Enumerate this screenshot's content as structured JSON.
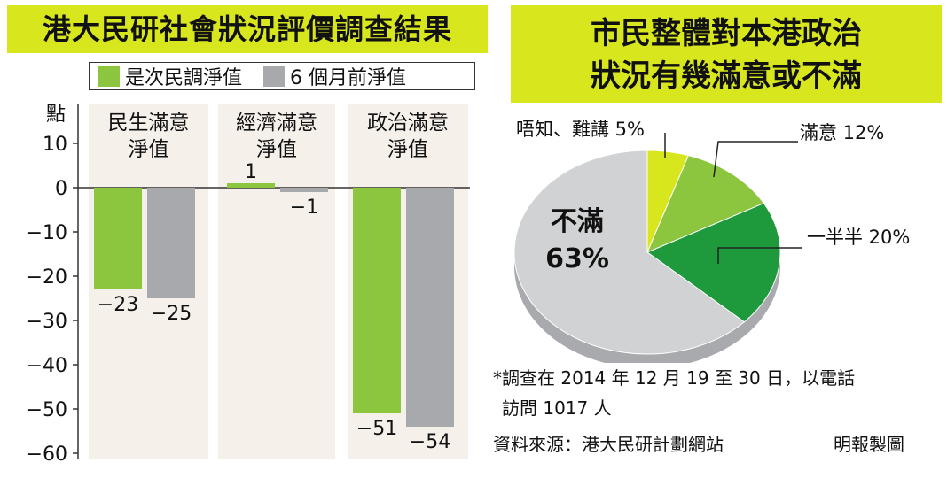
{
  "left_title": "港大民研社會狀況評價調查結果",
  "right_title": [
    "市民整體對本港政治",
    "狀況有幾滿意或不滿"
  ],
  "colors": {
    "title_bg": "#d8e61e",
    "current": "#8cc63f",
    "previous": "#a7a9ac",
    "panel_bg": "#f5f1ea",
    "pie_satisfied": "#8cc63f",
    "pie_half": "#1e9a3c",
    "pie_dontknow": "#d8e61e",
    "pie_dissatisfied": "#d0d2d3"
  },
  "chart_data": [
    {
      "type": "bar",
      "title": "港大民研社會狀況評價調查結果",
      "ylabel": "點",
      "ylim": [
        -60,
        10
      ],
      "yticks": [
        10,
        0,
        -10,
        -20,
        -30,
        -40,
        -50,
        -60
      ],
      "ytick_labels": [
        "10",
        "0",
        "−10",
        "−20",
        "−30",
        "−40",
        "−50",
        "−60"
      ],
      "categories": [
        "民生滿意淨值",
        "經濟滿意淨值",
        "政治滿意淨值"
      ],
      "category_lines": [
        [
          "民生滿意",
          "淨值"
        ],
        [
          "經濟滿意",
          "淨值"
        ],
        [
          "政治滿意",
          "淨值"
        ]
      ],
      "legend_placement": "top",
      "series": [
        {
          "name": "是次民調淨值",
          "values": [
            -23,
            1,
            -51
          ],
          "labels": [
            "−23",
            "1",
            "−51"
          ]
        },
        {
          "name": "6個月前淨值",
          "values": [
            -25,
            -1,
            -54
          ],
          "labels": [
            "−25",
            "−1",
            "−54"
          ]
        }
      ]
    },
    {
      "type": "pie",
      "title": "市民整體對本港政治狀況有幾滿意或不滿",
      "slices": [
        {
          "name": "唔知、難講",
          "value": 5,
          "label": "唔知、難講 5%"
        },
        {
          "name": "滿意",
          "value": 12,
          "label": "滿意 12%"
        },
        {
          "name": "一半半",
          "value": 20,
          "label": "一半半 20%"
        },
        {
          "name": "不滿",
          "value": 63,
          "label": "不滿",
          "pct": "63%"
        }
      ]
    }
  ],
  "legend": {
    "current": "是次民調淨值",
    "previous": "6 個月前淨值"
  },
  "note": [
    "*調查在 2014 年 12 月 19 至 30 日，以電話",
    "訪問 1017 人"
  ],
  "source": "資料來源：港大民研計劃網站",
  "credit": "明報製圖"
}
